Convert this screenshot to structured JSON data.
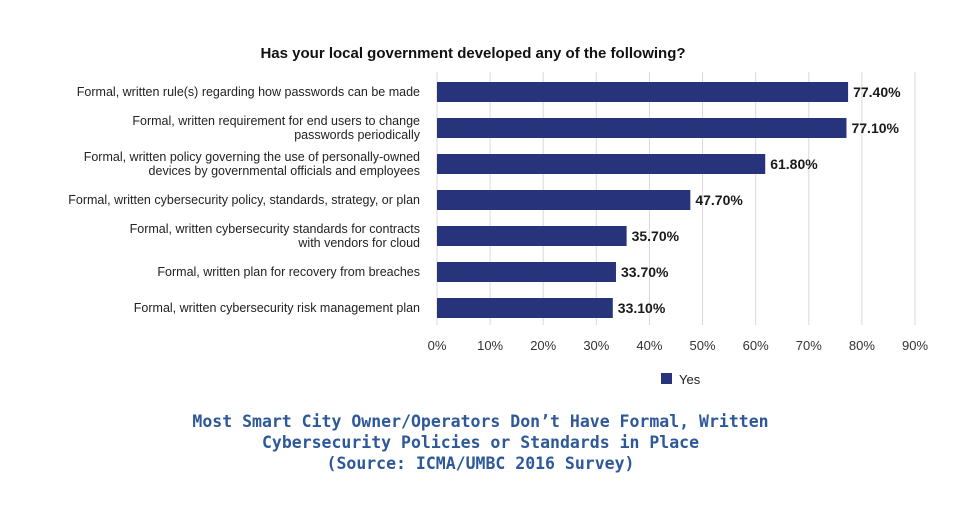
{
  "chart_data": {
    "type": "bar",
    "orientation": "horizontal",
    "title": "Has your local government developed any of the following?",
    "categories": [
      [
        "Formal, written rule(s) regarding how passwords can be made"
      ],
      [
        "Formal, written requirement for end users to change",
        "passwords periodically"
      ],
      [
        "Formal, written policy governing the use of personally-owned",
        "devices by governmental officials and employees"
      ],
      [
        "Formal, written cybersecurity policy, standards, strategy, or plan"
      ],
      [
        "Formal, written cybersecurity standards for contracts",
        "with vendors for cloud"
      ],
      [
        "Formal, written plan for recovery from breaches"
      ],
      [
        "Formal, written cybersecurity risk management plan"
      ]
    ],
    "series": [
      {
        "name": "Yes",
        "color": "#27337a",
        "values": [
          77.4,
          77.1,
          61.8,
          47.7,
          35.7,
          33.7,
          33.1
        ],
        "labels": [
          "77.40%",
          "77.10%",
          "61.80%",
          "47.70%",
          "35.70%",
          "33.70%",
          "33.10%"
        ]
      }
    ],
    "xlim": [
      0,
      90
    ],
    "xticks": [
      "0%",
      "10%",
      "20%",
      "30%",
      "40%",
      "50%",
      "60%",
      "70%",
      "80%",
      "90%"
    ],
    "grid": true,
    "legend": "bottom-center"
  },
  "caption": {
    "line1": "Most Smart City Owner/Operators Don’t Have Formal, Written",
    "line2": "Cybersecurity Policies or Standards in Place",
    "line3": "(Source: ICMA/UMBC 2016 Survey)"
  }
}
